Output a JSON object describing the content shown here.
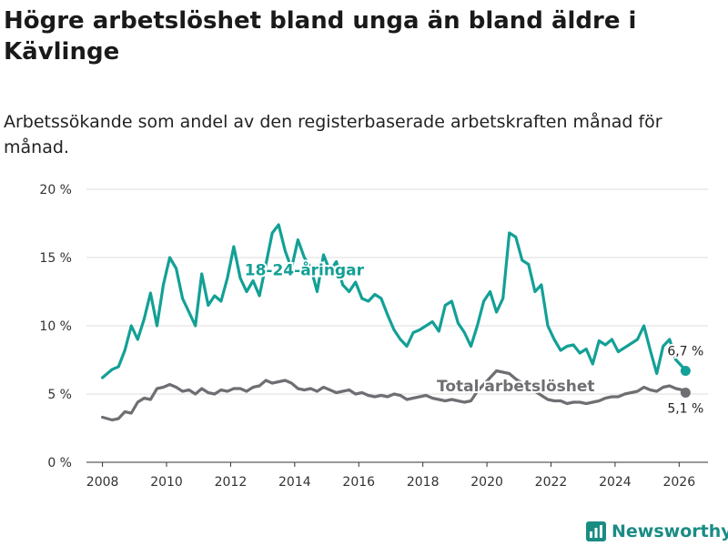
{
  "title": "Högre arbetslöshet bland unga än bland äldre i Kävlinge",
  "subtitle": "Arbetssökande som andel av den registerbaserade arbetskraften månad för månad.",
  "brand": {
    "name": "Newsworthy"
  },
  "colors": {
    "youth": "#13a096",
    "total": "#6e6e73",
    "grid": "#dddddd",
    "axis": "#333333"
  },
  "chart_data": {
    "type": "line",
    "title": "Högre arbetslöshet bland unga än bland äldre i Kävlinge",
    "xlabel": "",
    "ylabel": "",
    "xlim": [
      2007.5,
      2026.9
    ],
    "ylim": [
      0,
      20
    ],
    "x_ticks": [
      2008,
      2010,
      2012,
      2014,
      2016,
      2018,
      2020,
      2022,
      2024,
      2026
    ],
    "x_tick_labels": [
      "2008",
      "2010",
      "2012",
      "2014",
      "2016",
      "2018",
      "2020",
      "2022",
      "2024",
      "2026"
    ],
    "y_ticks": [
      0,
      5,
      10,
      15,
      20
    ],
    "y_tick_labels": [
      "0 %",
      "5 %",
      "10 %",
      "15 %",
      "20 %"
    ],
    "grid": true,
    "series": [
      {
        "name": "18-24-åringar",
        "label_text": "18-24-åringar",
        "end_label": "6,7 %",
        "x": [
          2008.0,
          2008.3,
          2008.5,
          2008.7,
          2008.9,
          2009.1,
          2009.3,
          2009.5,
          2009.7,
          2009.9,
          2010.1,
          2010.3,
          2010.5,
          2010.7,
          2010.9,
          2011.1,
          2011.3,
          2011.5,
          2011.7,
          2011.9,
          2012.1,
          2012.3,
          2012.5,
          2012.7,
          2012.9,
          2013.1,
          2013.3,
          2013.5,
          2013.7,
          2013.9,
          2014.1,
          2014.3,
          2014.5,
          2014.7,
          2014.9,
          2015.1,
          2015.3,
          2015.5,
          2015.7,
          2015.9,
          2016.1,
          2016.3,
          2016.5,
          2016.7,
          2016.9,
          2017.1,
          2017.3,
          2017.5,
          2017.7,
          2017.9,
          2018.1,
          2018.3,
          2018.5,
          2018.7,
          2018.9,
          2019.1,
          2019.3,
          2019.5,
          2019.7,
          2019.9,
          2020.1,
          2020.3,
          2020.5,
          2020.7,
          2020.9,
          2021.1,
          2021.3,
          2021.5,
          2021.7,
          2021.9,
          2022.1,
          2022.3,
          2022.5,
          2022.7,
          2022.9,
          2023.1,
          2023.3,
          2023.5,
          2023.7,
          2023.9,
          2024.1,
          2024.3,
          2024.5,
          2024.7,
          2024.9,
          2025.1,
          2025.3,
          2025.5,
          2025.7,
          2025.9,
          2026.1,
          2026.2
        ],
        "values": [
          6.2,
          6.8,
          7.0,
          8.2,
          10.0,
          9.0,
          10.5,
          12.4,
          10.0,
          13.0,
          15.0,
          14.2,
          12.0,
          11.0,
          10.0,
          13.8,
          11.5,
          12.2,
          11.8,
          13.5,
          15.8,
          13.5,
          12.5,
          13.3,
          12.2,
          14.5,
          16.8,
          17.4,
          15.5,
          14.2,
          16.3,
          15.0,
          14.3,
          12.5,
          15.2,
          14.0,
          14.7,
          13.0,
          12.5,
          13.2,
          12.0,
          11.8,
          12.3,
          12.0,
          10.8,
          9.7,
          9.0,
          8.5,
          9.5,
          9.7,
          10.0,
          10.3,
          9.6,
          11.5,
          11.8,
          10.2,
          9.5,
          8.5,
          10.0,
          11.8,
          12.5,
          11.0,
          12.0,
          16.8,
          16.5,
          14.8,
          14.5,
          12.5,
          13.0,
          10.0,
          9.0,
          8.2,
          8.5,
          8.6,
          8.0,
          8.3,
          7.2,
          8.9,
          8.6,
          9.0,
          8.1,
          8.4,
          8.7,
          9.0,
          10.0,
          8.2,
          6.5,
          8.5,
          9.0,
          7.5,
          7.0,
          6.7
        ]
      },
      {
        "name": "Total arbetslöshet",
        "label_text": "Total arbetslöshet",
        "end_label": "5,1 %",
        "x": [
          2008.0,
          2008.3,
          2008.5,
          2008.7,
          2008.9,
          2009.1,
          2009.3,
          2009.5,
          2009.7,
          2009.9,
          2010.1,
          2010.3,
          2010.5,
          2010.7,
          2010.9,
          2011.1,
          2011.3,
          2011.5,
          2011.7,
          2011.9,
          2012.1,
          2012.3,
          2012.5,
          2012.7,
          2012.9,
          2013.1,
          2013.3,
          2013.5,
          2013.7,
          2013.9,
          2014.1,
          2014.3,
          2014.5,
          2014.7,
          2014.9,
          2015.1,
          2015.3,
          2015.5,
          2015.7,
          2015.9,
          2016.1,
          2016.3,
          2016.5,
          2016.7,
          2016.9,
          2017.1,
          2017.3,
          2017.5,
          2017.7,
          2017.9,
          2018.1,
          2018.3,
          2018.5,
          2018.7,
          2018.9,
          2019.1,
          2019.3,
          2019.5,
          2019.7,
          2019.9,
          2020.1,
          2020.3,
          2020.5,
          2020.7,
          2020.9,
          2021.1,
          2021.3,
          2021.5,
          2021.7,
          2021.9,
          2022.1,
          2022.3,
          2022.5,
          2022.7,
          2022.9,
          2023.1,
          2023.3,
          2023.5,
          2023.7,
          2023.9,
          2024.1,
          2024.3,
          2024.5,
          2024.7,
          2024.9,
          2025.1,
          2025.3,
          2025.5,
          2025.7,
          2025.9,
          2026.1,
          2026.2
        ],
        "values": [
          3.3,
          3.1,
          3.2,
          3.7,
          3.6,
          4.4,
          4.7,
          4.6,
          5.4,
          5.5,
          5.7,
          5.5,
          5.2,
          5.3,
          5.0,
          5.4,
          5.1,
          5.0,
          5.3,
          5.2,
          5.4,
          5.4,
          5.2,
          5.5,
          5.6,
          6.0,
          5.8,
          5.9,
          6.0,
          5.8,
          5.4,
          5.3,
          5.4,
          5.2,
          5.5,
          5.3,
          5.1,
          5.2,
          5.3,
          5.0,
          5.1,
          4.9,
          4.8,
          4.9,
          4.8,
          5.0,
          4.9,
          4.6,
          4.7,
          4.8,
          4.9,
          4.7,
          4.6,
          4.5,
          4.6,
          4.5,
          4.4,
          4.5,
          5.2,
          5.7,
          6.2,
          6.7,
          6.6,
          6.5,
          6.1,
          5.8,
          5.5,
          5.2,
          4.9,
          4.6,
          4.5,
          4.5,
          4.3,
          4.4,
          4.4,
          4.3,
          4.4,
          4.5,
          4.7,
          4.8,
          4.8,
          5.0,
          5.1,
          5.2,
          5.5,
          5.3,
          5.2,
          5.5,
          5.6,
          5.4,
          5.3,
          5.1
        ]
      }
    ]
  }
}
